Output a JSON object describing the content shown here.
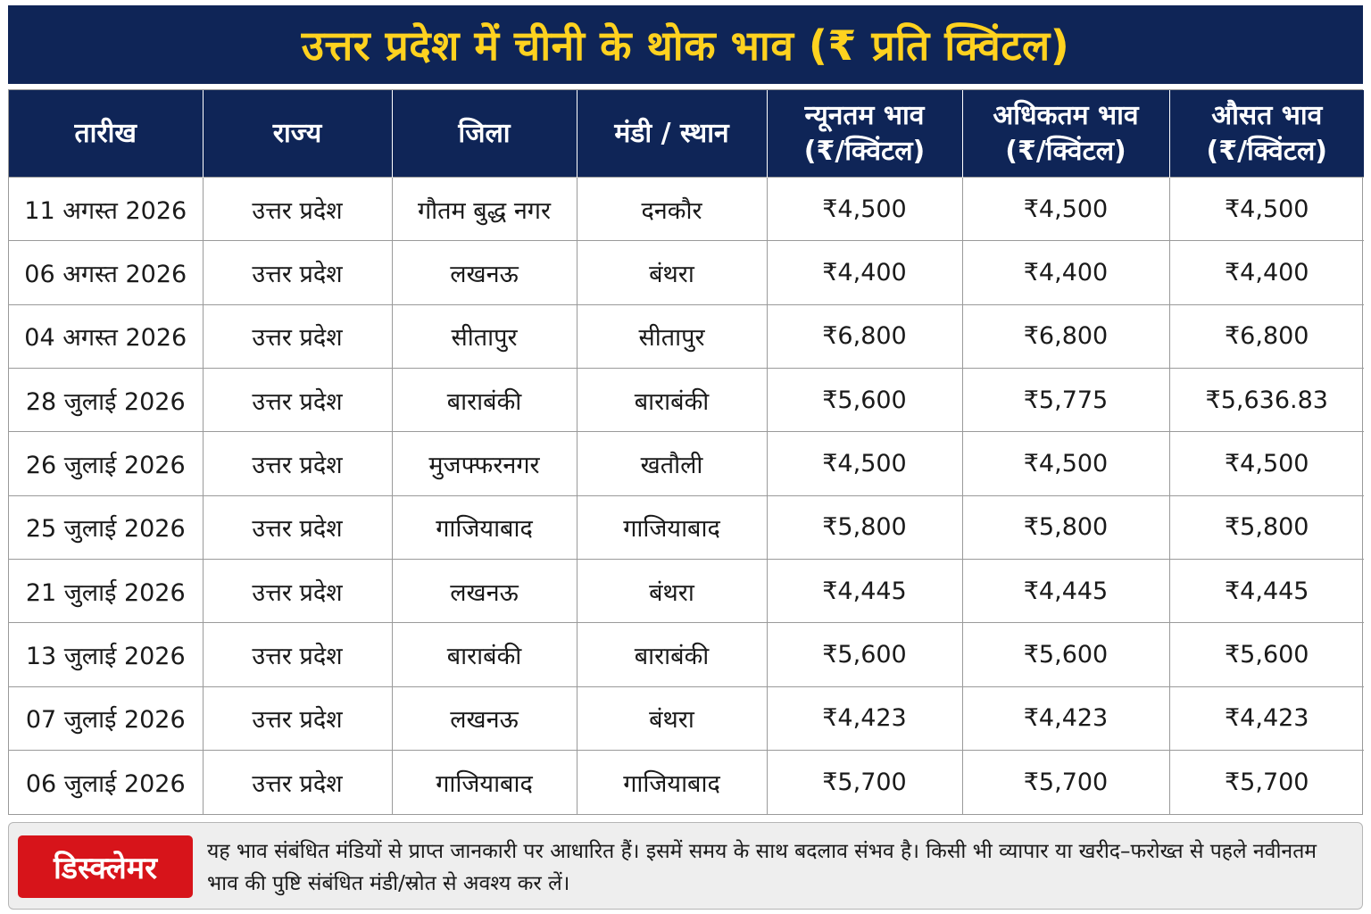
{
  "title": "उत्तर प्रदेश में चीनी के थोक भाव (₹ प्रति क्विंटल)",
  "table": {
    "headers": [
      {
        "line1": "तारीख",
        "line2": ""
      },
      {
        "line1": "राज्य",
        "line2": ""
      },
      {
        "line1": "जिला",
        "line2": ""
      },
      {
        "line1": "मंडी / स्थान",
        "line2": ""
      },
      {
        "line1": "न्यूनतम भाव",
        "line2": "(₹/क्विंटल)"
      },
      {
        "line1": "अधिकतम भाव",
        "line2": "(₹/क्विंटल)"
      },
      {
        "line1": "औसत भाव",
        "line2": "(₹/क्विंटल)"
      }
    ],
    "rows": [
      [
        "11 अगस्त 2026",
        "उत्तर प्रदेश",
        "गौतम बुद्ध नगर",
        "दनकौर",
        "₹4,500",
        "₹4,500",
        "₹4,500"
      ],
      [
        "06 अगस्त 2026",
        "उत्तर प्रदेश",
        "लखनऊ",
        "बंथरा",
        "₹4,400",
        "₹4,400",
        "₹4,400"
      ],
      [
        "04 अगस्त 2026",
        "उत्तर प्रदेश",
        "सीतापुर",
        "सीतापुर",
        "₹6,800",
        "₹6,800",
        "₹6,800"
      ],
      [
        "28 जुलाई 2026",
        "उत्तर प्रदेश",
        "बाराबंकी",
        "बाराबंकी",
        "₹5,600",
        "₹5,775",
        "₹5,636.83"
      ],
      [
        "26 जुलाई 2026",
        "उत्तर प्रदेश",
        "मुजफ्फरनगर",
        "खतौली",
        "₹4,500",
        "₹4,500",
        "₹4,500"
      ],
      [
        "25 जुलाई 2026",
        "उत्तर प्रदेश",
        "गाजियाबाद",
        "गाजियाबाद",
        "₹5,800",
        "₹5,800",
        "₹5,800"
      ],
      [
        "21 जुलाई 2026",
        "उत्तर प्रदेश",
        "लखनऊ",
        "बंथरा",
        "₹4,445",
        "₹4,445",
        "₹4,445"
      ],
      [
        "13 जुलाई 2026",
        "उत्तर प्रदेश",
        "बाराबंकी",
        "बाराबंकी",
        "₹5,600",
        "₹5,600",
        "₹5,600"
      ],
      [
        "07 जुलाई 2026",
        "उत्तर प्रदेश",
        "लखनऊ",
        "बंथरा",
        "₹4,423",
        "₹4,423",
        "₹4,423"
      ],
      [
        "06 जुलाई 2026",
        "उत्तर प्रदेश",
        "गाजियाबाद",
        "गाजियाबाद",
        "₹5,700",
        "₹5,700",
        "₹5,700"
      ]
    ]
  },
  "disclaimer": {
    "label": "डिस्क्लेमर",
    "text": "यह भाव संबंधित मंडियों से प्राप्त जानकारी पर आधारित हैं। इसमें समय के साथ बदलाव संभव है। किसी भी व्यापार या खरीद–फरोख्त से पहले नवीनतम भाव की पुष्टि संबंधित मंडी/स्रोत से अवश्य कर लें।"
  },
  "colors": {
    "header_bg": "#0f2557",
    "title_text": "#ffd21f",
    "disclaimer_badge": "#d7141a"
  }
}
